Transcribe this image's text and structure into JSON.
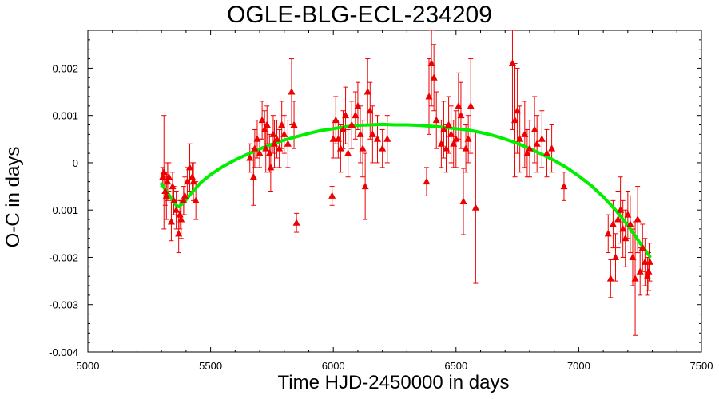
{
  "chart_data": {
    "type": "scatter",
    "title": "OGLE-BLG-ECL-234209",
    "xlabel": "Time HJD-2450000 in days",
    "ylabel": "O-C in days",
    "xlim": [
      5000,
      7500
    ],
    "ylim": [
      -0.004,
      0.0028
    ],
    "xticks": [
      5000,
      5500,
      6000,
      6500,
      7000,
      7500
    ],
    "yticks": [
      -0.004,
      -0.003,
      -0.002,
      -0.001,
      0,
      0.001,
      0.002
    ],
    "ytick_labels": [
      "-0.004",
      "-0.003",
      "-0.002",
      "-0.001",
      "0",
      "0.001",
      "0.002"
    ],
    "grid": false,
    "series": [
      {
        "marker": "triangle",
        "color": "#ee0000",
        "x": [
          5305,
          5310,
          5315,
          5320,
          5325,
          5330,
          5340,
          5345,
          5350,
          5360,
          5370,
          5375,
          5380,
          5390,
          5395,
          5405,
          5415,
          5425,
          5430,
          5440,
          5660,
          5675,
          5680,
          5690,
          5700,
          5710,
          5720,
          5725,
          5730,
          5740,
          5745,
          5755,
          5760,
          5770,
          5780,
          5790,
          5800,
          5815,
          5830,
          5840,
          5850,
          5995,
          6000,
          6010,
          6020,
          6030,
          6040,
          6050,
          6060,
          6075,
          6090,
          6100,
          6110,
          6120,
          6130,
          6140,
          6150,
          6160,
          6180,
          6200,
          6220,
          6380,
          6390,
          6400,
          6410,
          6420,
          6440,
          6450,
          6460,
          6470,
          6480,
          6490,
          6500,
          6510,
          6520,
          6530,
          6540,
          6550,
          6560,
          6580,
          6730,
          6740,
          6750,
          6760,
          6780,
          6790,
          6800,
          6820,
          6830,
          6850,
          6870,
          6890,
          6940,
          7120,
          7130,
          7140,
          7150,
          7160,
          7170,
          7180,
          7190,
          7200,
          7210,
          7220,
          7230,
          7240,
          7250,
          7260,
          7270,
          7280,
          7285,
          7290
        ],
        "y": [
          -0.0003,
          -0.0002,
          -0.0006,
          -0.0007,
          -0.0004,
          -0.0003,
          -0.00125,
          -0.0005,
          -0.0008,
          -0.001,
          -0.0015,
          -0.0011,
          -0.0012,
          -0.0008,
          -0.0007,
          -0.0004,
          -0.0001,
          -0.0003,
          -0.0004,
          -0.0008,
          0.0001,
          -0.0003,
          0.0003,
          0.0005,
          0.0002,
          0.0009,
          0.0007,
          0.0003,
          0.0008,
          0.0002,
          -0.0001,
          0.0006,
          0.0004,
          0.0005,
          0.0003,
          0.0008,
          0.0006,
          0.0004,
          0.0015,
          0.0008,
          -0.00127,
          -0.0007,
          0.0005,
          0.0009,
          0.0005,
          0.0003,
          0.0007,
          0.001,
          0.0002,
          0.0008,
          0.001,
          0.0012,
          0.0006,
          0.0003,
          -0.0005,
          0.0015,
          0.0011,
          0.0006,
          0.0005,
          0.0003,
          0.0005,
          -0.0004,
          0.0014,
          0.0021,
          0.0018,
          0.0009,
          0.0004,
          0.0007,
          0.0003,
          0.0008,
          0.0006,
          0.0004,
          0.0005,
          0.0012,
          0.001,
          -0.00082,
          0.0003,
          0.0005,
          0.0012,
          -0.00095,
          0.0021,
          0.0009,
          0.0011,
          0.0005,
          0.0006,
          0.0002,
          0.0003,
          0.0007,
          0.0004,
          0.0005,
          0.0002,
          0.0003,
          -0.0005,
          -0.0015,
          -0.00245,
          -0.0013,
          -0.002,
          -0.0012,
          -0.001,
          -0.0014,
          -0.0016,
          -0.0011,
          -0.0013,
          -0.002,
          -0.00245,
          -0.0012,
          -0.0023,
          -0.0018,
          -0.0021,
          -0.0024,
          -0.0023,
          -0.0021
        ],
        "yerr": [
          0.0002,
          0.0012,
          0.0003,
          0.0005,
          0.0004,
          0.0003,
          0.0004,
          0.0003,
          0.0003,
          0.0004,
          0.0004,
          0.0003,
          0.0004,
          0.0003,
          0.0004,
          0.0003,
          0.0005,
          0.0003,
          0.0004,
          0.0004,
          0.0003,
          0.0006,
          0.0004,
          0.0004,
          0.0003,
          0.0004,
          0.0004,
          0.0005,
          0.0004,
          0.0004,
          0.0005,
          0.0004,
          0.0005,
          0.0004,
          0.0004,
          0.0005,
          0.0004,
          0.0005,
          0.0007,
          0.0005,
          0.0002,
          0.0002,
          0.0004,
          0.0005,
          0.0004,
          0.0005,
          0.0004,
          0.0006,
          0.0005,
          0.0005,
          0.0005,
          0.0005,
          0.0006,
          0.0006,
          0.0007,
          0.0007,
          0.0006,
          0.0006,
          0.0005,
          0.0004,
          0.0005,
          0.0003,
          0.0008,
          0.0009,
          0.0007,
          0.0006,
          0.0005,
          0.0006,
          0.0005,
          0.0006,
          0.0006,
          0.0005,
          0.0006,
          0.0007,
          0.0007,
          0.0007,
          0.0005,
          0.0005,
          0.001,
          0.0016,
          0.0014,
          0.0012,
          0.0009,
          0.0007,
          0.0007,
          0.0005,
          0.0006,
          0.0007,
          0.0006,
          0.0006,
          0.0005,
          0.0005,
          0.0003,
          0.0004,
          0.0004,
          0.0005,
          0.0005,
          0.0006,
          0.0007,
          0.0006,
          0.0006,
          0.0005,
          0.0006,
          0.0006,
          0.0012,
          0.0007,
          0.0005,
          0.0005,
          0.0005,
          0.0004,
          0.0004,
          0.0004
        ]
      },
      {
        "type": "line",
        "color": "#00ee00",
        "x": [
          5300,
          5320,
          5340,
          5360,
          5370,
          5390,
          5420,
          5460,
          5500,
          5550,
          5600,
          5650,
          5700,
          5750,
          5800,
          5850,
          5900,
          5950,
          6000,
          6050,
          6100,
          6150,
          6200,
          6250,
          6300,
          6350,
          6400,
          6450,
          6500,
          6550,
          6600,
          6650,
          6700,
          6750,
          6800,
          6850,
          6900,
          6950,
          7000,
          7050,
          7100,
          7150,
          7200,
          7250,
          7290
        ],
        "y": [
          -0.00045,
          -0.0006,
          -0.00075,
          -0.0009,
          -0.00093,
          -0.00085,
          -0.00065,
          -0.00042,
          -0.00025,
          -8e-05,
          6e-05,
          0.00018,
          0.00029,
          0.00039,
          0.00048,
          0.00055,
          0.00062,
          0.00068,
          0.00072,
          0.00076,
          0.00079,
          0.0008,
          0.00081,
          0.0008,
          0.0008,
          0.00079,
          0.00077,
          0.00075,
          0.00072,
          0.00069,
          0.00064,
          0.00058,
          0.0005,
          0.00041,
          0.0003,
          0.00018,
          5e-05,
          -0.0001,
          -0.00028,
          -0.00048,
          -0.00072,
          -0.001,
          -0.00132,
          -0.0017,
          -0.00198
        ]
      }
    ]
  }
}
